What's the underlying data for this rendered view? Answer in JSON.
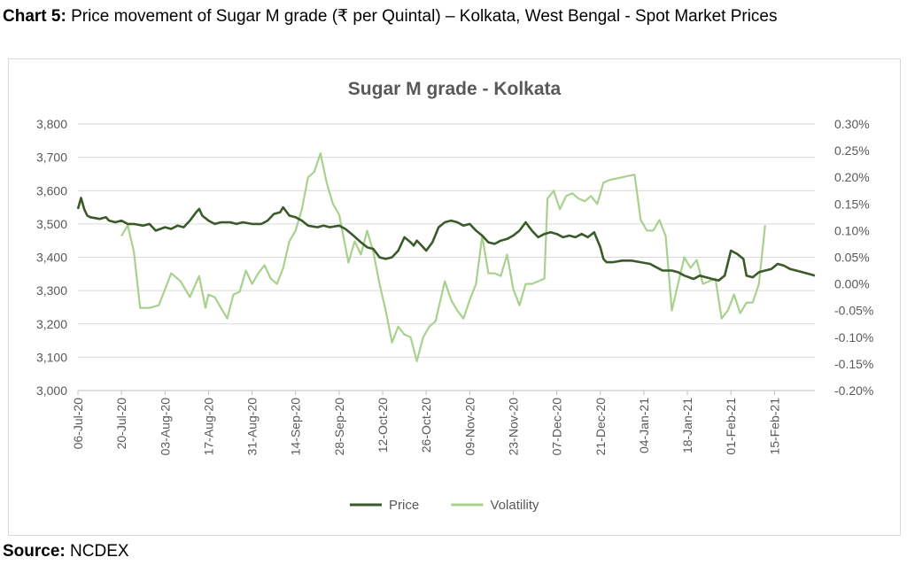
{
  "caption": {
    "label": "Chart 5:",
    "text": " Price movement of Sugar M grade (₹ per Quintal) – Kolkata, West Bengal - Spot Market Prices"
  },
  "source": {
    "label": "Source:",
    "text": " NCDEX"
  },
  "chart_data": {
    "type": "line",
    "title": "Sugar M grade - Kolkata",
    "xlabel": "",
    "ylabel": "",
    "y2label": "",
    "ylim": [
      3000,
      3800
    ],
    "y2lim": [
      -0.2,
      0.3
    ],
    "y_ticks": [
      "3,000",
      "3,100",
      "3,200",
      "3,300",
      "3,400",
      "3,500",
      "3,600",
      "3,700",
      "3,800"
    ],
    "y2_ticks": [
      "-0.20%",
      "-0.15%",
      "-0.10%",
      "-0.05%",
      "0.00%",
      "0.05%",
      "0.10%",
      "0.15%",
      "0.20%",
      "0.25%",
      "0.30%"
    ],
    "x_ticks": [
      "06-Jul-20",
      "20-Jul-20",
      "03-Aug-20",
      "17-Aug-20",
      "31-Aug-20",
      "14-Sep-20",
      "28-Sep-20",
      "12-Oct-20",
      "26-Oct-20",
      "09-Nov-20",
      "23-Nov-20",
      "07-Dec-20",
      "21-Dec-20",
      "04-Jan-21",
      "18-Jan-21",
      "01-Feb-21",
      "15-Feb-21"
    ],
    "x_range": [
      "2020-07-06",
      "2021-02-28"
    ],
    "grid": "horizontal",
    "legend": "bottom",
    "series": [
      {
        "name": "Price",
        "axis": "left",
        "color": "#3a5a29",
        "points": [
          [
            "2020-07-06",
            3545
          ],
          [
            "2020-07-07",
            3578
          ],
          [
            "2020-07-08",
            3545
          ],
          [
            "2020-07-09",
            3525
          ],
          [
            "2020-07-10",
            3520
          ],
          [
            "2020-07-13",
            3515
          ],
          [
            "2020-07-15",
            3520
          ],
          [
            "2020-07-16",
            3510
          ],
          [
            "2020-07-18",
            3505
          ],
          [
            "2020-07-20",
            3510
          ],
          [
            "2020-07-22",
            3500
          ],
          [
            "2020-07-24",
            3500
          ],
          [
            "2020-07-27",
            3495
          ],
          [
            "2020-07-29",
            3500
          ],
          [
            "2020-07-31",
            3480
          ],
          [
            "2020-08-03",
            3490
          ],
          [
            "2020-08-05",
            3485
          ],
          [
            "2020-08-07",
            3495
          ],
          [
            "2020-08-09",
            3490
          ],
          [
            "2020-08-11",
            3510
          ],
          [
            "2020-08-13",
            3535
          ],
          [
            "2020-08-14",
            3545
          ],
          [
            "2020-08-15",
            3525
          ],
          [
            "2020-08-17",
            3510
          ],
          [
            "2020-08-19",
            3500
          ],
          [
            "2020-08-21",
            3505
          ],
          [
            "2020-08-24",
            3505
          ],
          [
            "2020-08-26",
            3500
          ],
          [
            "2020-08-28",
            3505
          ],
          [
            "2020-08-31",
            3500
          ],
          [
            "2020-09-03",
            3500
          ],
          [
            "2020-09-05",
            3510
          ],
          [
            "2020-09-07",
            3530
          ],
          [
            "2020-09-09",
            3535
          ],
          [
            "2020-09-10",
            3550
          ],
          [
            "2020-09-12",
            3525
          ],
          [
            "2020-09-14",
            3520
          ],
          [
            "2020-09-16",
            3510
          ],
          [
            "2020-09-18",
            3495
          ],
          [
            "2020-09-21",
            3490
          ],
          [
            "2020-09-23",
            3495
          ],
          [
            "2020-09-25",
            3490
          ],
          [
            "2020-09-28",
            3495
          ],
          [
            "2020-09-30",
            3485
          ],
          [
            "2020-10-02",
            3470
          ],
          [
            "2020-10-05",
            3445
          ],
          [
            "2020-10-07",
            3430
          ],
          [
            "2020-10-09",
            3425
          ],
          [
            "2020-10-11",
            3400
          ],
          [
            "2020-10-13",
            3395
          ],
          [
            "2020-10-15",
            3400
          ],
          [
            "2020-10-17",
            3420
          ],
          [
            "2020-10-19",
            3460
          ],
          [
            "2020-10-21",
            3445
          ],
          [
            "2020-10-22",
            3435
          ],
          [
            "2020-10-23",
            3450
          ],
          [
            "2020-10-24",
            3440
          ],
          [
            "2020-10-26",
            3420
          ],
          [
            "2020-10-28",
            3445
          ],
          [
            "2020-10-30",
            3490
          ],
          [
            "2020-11-01",
            3505
          ],
          [
            "2020-11-03",
            3510
          ],
          [
            "2020-11-05",
            3505
          ],
          [
            "2020-11-07",
            3495
          ],
          [
            "2020-11-09",
            3500
          ],
          [
            "2020-11-11",
            3480
          ],
          [
            "2020-11-13",
            3465
          ],
          [
            "2020-11-15",
            3445
          ],
          [
            "2020-11-17",
            3440
          ],
          [
            "2020-11-19",
            3450
          ],
          [
            "2020-11-21",
            3455
          ],
          [
            "2020-11-23",
            3465
          ],
          [
            "2020-11-25",
            3480
          ],
          [
            "2020-11-27",
            3505
          ],
          [
            "2020-11-29",
            3480
          ],
          [
            "2020-12-01",
            3460
          ],
          [
            "2020-12-03",
            3470
          ],
          [
            "2020-12-05",
            3475
          ],
          [
            "2020-12-07",
            3470
          ],
          [
            "2020-12-09",
            3460
          ],
          [
            "2020-12-11",
            3465
          ],
          [
            "2020-12-13",
            3460
          ],
          [
            "2020-12-15",
            3470
          ],
          [
            "2020-12-17",
            3460
          ],
          [
            "2020-12-19",
            3475
          ],
          [
            "2020-12-21",
            3430
          ],
          [
            "2020-12-22",
            3395
          ],
          [
            "2020-12-23",
            3385
          ],
          [
            "2020-12-25",
            3385
          ],
          [
            "2020-12-28",
            3390
          ],
          [
            "2020-12-31",
            3390
          ],
          [
            "2021-01-03",
            3385
          ],
          [
            "2021-01-06",
            3380
          ],
          [
            "2021-01-08",
            3370
          ],
          [
            "2021-01-10",
            3360
          ],
          [
            "2021-01-13",
            3360
          ],
          [
            "2021-01-15",
            3355
          ],
          [
            "2021-01-17",
            3345
          ],
          [
            "2021-01-20",
            3335
          ],
          [
            "2021-01-22",
            3345
          ],
          [
            "2021-01-24",
            3340
          ],
          [
            "2021-01-26",
            3335
          ],
          [
            "2021-01-28",
            3330
          ],
          [
            "2021-01-30",
            3345
          ],
          [
            "2021-02-01",
            3420
          ],
          [
            "2021-02-03",
            3410
          ],
          [
            "2021-02-05",
            3395
          ],
          [
            "2021-02-06",
            3345
          ],
          [
            "2021-02-08",
            3340
          ],
          [
            "2021-02-10",
            3355
          ],
          [
            "2021-02-12",
            3360
          ],
          [
            "2021-02-14",
            3365
          ],
          [
            "2021-02-16",
            3380
          ],
          [
            "2021-02-18",
            3375
          ],
          [
            "2021-02-20",
            3365
          ],
          [
            "2021-02-22",
            3360
          ],
          [
            "2021-02-24",
            3355
          ],
          [
            "2021-02-26",
            3350
          ],
          [
            "2021-02-28",
            3345
          ]
        ]
      },
      {
        "name": "Volatility",
        "axis": "right",
        "color": "#a9d18e",
        "points": [
          [
            "2020-07-20",
            0.09
          ],
          [
            "2020-07-22",
            0.11
          ],
          [
            "2020-07-24",
            0.06
          ],
          [
            "2020-07-26",
            -0.045
          ],
          [
            "2020-07-29",
            -0.045
          ],
          [
            "2020-08-01",
            -0.04
          ],
          [
            "2020-08-05",
            0.02
          ],
          [
            "2020-08-08",
            0.005
          ],
          [
            "2020-08-11",
            -0.025
          ],
          [
            "2020-08-14",
            0.015
          ],
          [
            "2020-08-16",
            -0.045
          ],
          [
            "2020-08-17",
            -0.02
          ],
          [
            "2020-08-19",
            -0.025
          ],
          [
            "2020-08-21",
            -0.045
          ],
          [
            "2020-08-23",
            -0.065
          ],
          [
            "2020-08-25",
            -0.02
          ],
          [
            "2020-08-27",
            -0.015
          ],
          [
            "2020-08-29",
            0.025
          ],
          [
            "2020-08-31",
            0.0
          ],
          [
            "2020-09-02",
            0.02
          ],
          [
            "2020-09-04",
            0.035
          ],
          [
            "2020-09-06",
            0.01
          ],
          [
            "2020-09-08",
            0.0
          ],
          [
            "2020-09-10",
            0.03
          ],
          [
            "2020-09-12",
            0.08
          ],
          [
            "2020-09-14",
            0.1
          ],
          [
            "2020-09-16",
            0.14
          ],
          [
            "2020-09-18",
            0.2
          ],
          [
            "2020-09-20",
            0.21
          ],
          [
            "2020-09-22",
            0.245
          ],
          [
            "2020-09-24",
            0.19
          ],
          [
            "2020-09-26",
            0.15
          ],
          [
            "2020-09-28",
            0.13
          ],
          [
            "2020-10-01",
            0.04
          ],
          [
            "2020-10-03",
            0.08
          ],
          [
            "2020-10-05",
            0.055
          ],
          [
            "2020-10-07",
            0.1
          ],
          [
            "2020-10-09",
            0.06
          ],
          [
            "2020-10-11",
            0.0
          ],
          [
            "2020-10-13",
            -0.05
          ],
          [
            "2020-10-15",
            -0.11
          ],
          [
            "2020-10-17",
            -0.08
          ],
          [
            "2020-10-19",
            -0.095
          ],
          [
            "2020-10-21",
            -0.1
          ],
          [
            "2020-10-23",
            -0.145
          ],
          [
            "2020-10-25",
            -0.1
          ],
          [
            "2020-10-27",
            -0.08
          ],
          [
            "2020-10-29",
            -0.07
          ],
          [
            "2020-11-01",
            0.005
          ],
          [
            "2020-11-03",
            -0.03
          ],
          [
            "2020-11-05",
            -0.05
          ],
          [
            "2020-11-07",
            -0.065
          ],
          [
            "2020-11-09",
            -0.03
          ],
          [
            "2020-11-11",
            0.0
          ],
          [
            "2020-11-13",
            0.09
          ],
          [
            "2020-11-15",
            0.02
          ],
          [
            "2020-11-17",
            0.02
          ],
          [
            "2020-11-19",
            0.015
          ],
          [
            "2020-11-21",
            0.055
          ],
          [
            "2020-11-23",
            -0.01
          ],
          [
            "2020-11-25",
            -0.04
          ],
          [
            "2020-11-27",
            0.0
          ],
          [
            "2020-11-29",
            0.0
          ],
          [
            "2020-12-01",
            0.005
          ],
          [
            "2020-12-03",
            0.01
          ],
          [
            "2020-12-04",
            0.16
          ],
          [
            "2020-12-06",
            0.175
          ],
          [
            "2020-12-08",
            0.14
          ],
          [
            "2020-12-10",
            0.165
          ],
          [
            "2020-12-12",
            0.17
          ],
          [
            "2020-12-14",
            0.16
          ],
          [
            "2020-12-16",
            0.155
          ],
          [
            "2020-12-18",
            0.165
          ],
          [
            "2020-12-20",
            0.15
          ],
          [
            "2020-12-22",
            0.19
          ],
          [
            "2020-12-24",
            0.195
          ],
          [
            "2020-12-28",
            0.2
          ],
          [
            "2021-01-01",
            0.205
          ],
          [
            "2021-01-03",
            0.12
          ],
          [
            "2021-01-05",
            0.1
          ],
          [
            "2021-01-07",
            0.1
          ],
          [
            "2021-01-09",
            0.12
          ],
          [
            "2021-01-11",
            0.09
          ],
          [
            "2021-01-13",
            -0.05
          ],
          [
            "2021-01-15",
            0.0
          ],
          [
            "2021-01-17",
            0.05
          ],
          [
            "2021-01-19",
            0.03
          ],
          [
            "2021-01-21",
            0.045
          ],
          [
            "2021-01-23",
            0.0
          ],
          [
            "2021-01-25",
            0.005
          ],
          [
            "2021-01-27",
            0.01
          ],
          [
            "2021-01-29",
            -0.065
          ],
          [
            "2021-01-31",
            -0.05
          ],
          [
            "2021-02-02",
            -0.02
          ],
          [
            "2021-02-04",
            -0.055
          ],
          [
            "2021-02-06",
            -0.035
          ],
          [
            "2021-02-08",
            -0.035
          ],
          [
            "2021-02-10",
            0.0
          ],
          [
            "2021-02-12",
            0.11
          ]
        ]
      }
    ]
  }
}
